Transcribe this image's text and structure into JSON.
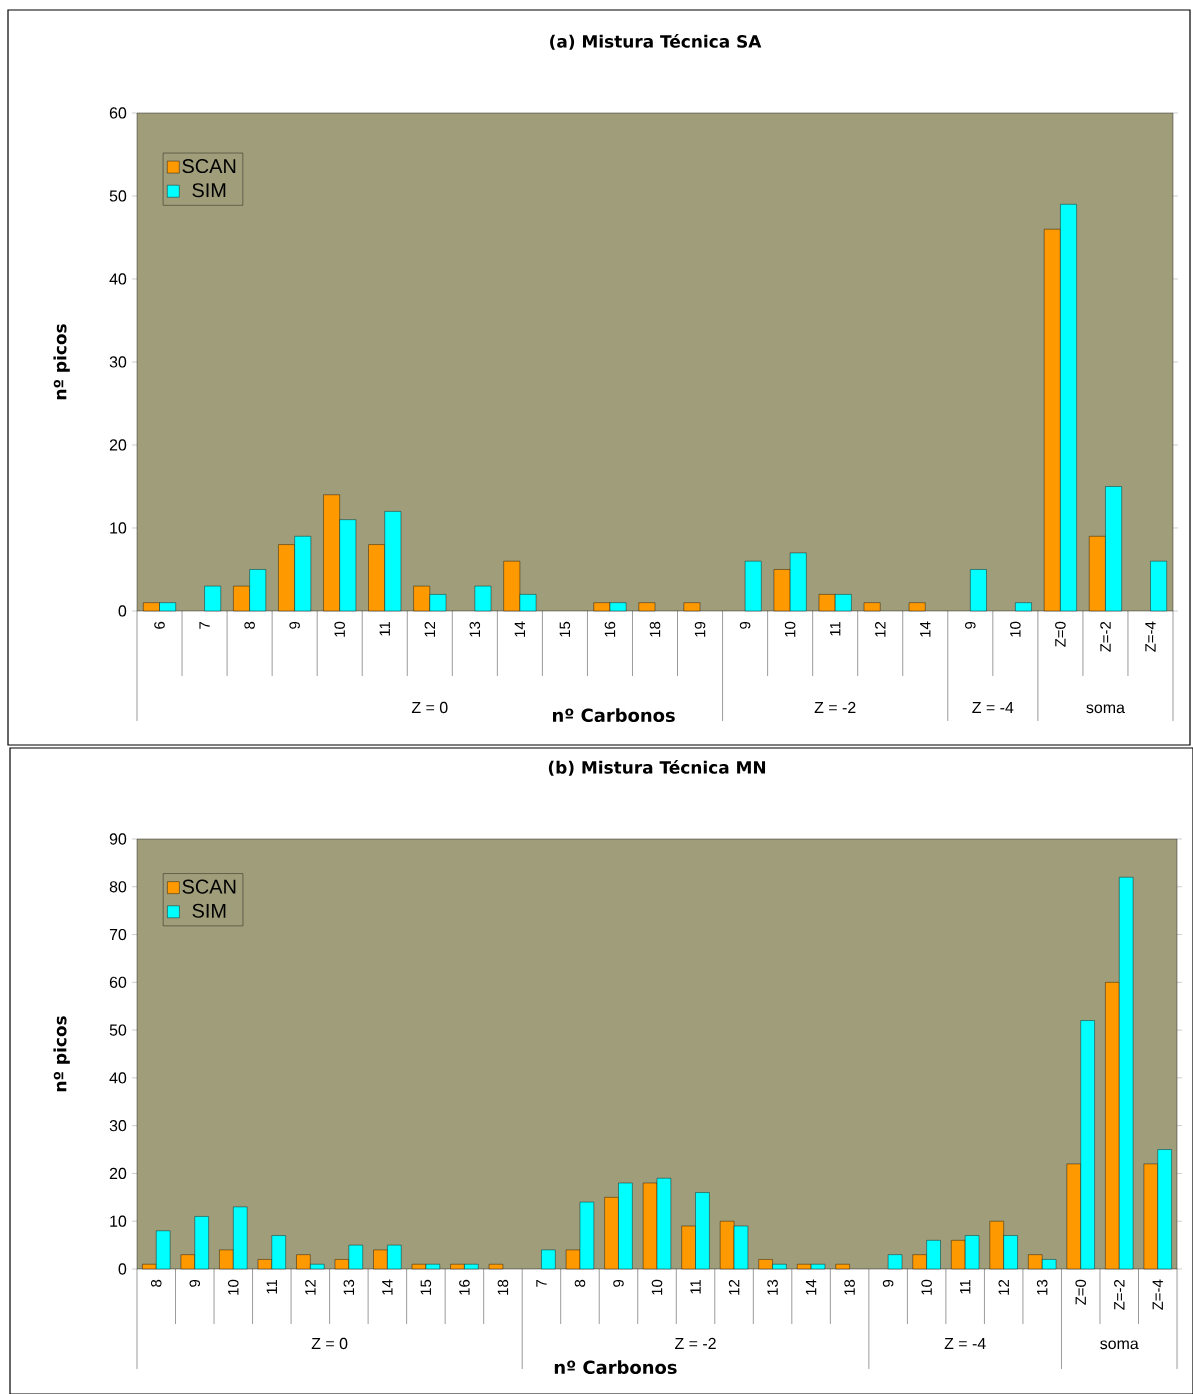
{
  "chart_data": [
    {
      "type": "bar",
      "title": "(a) Mistura Técnica SA",
      "xlabel": "nº Carbonos",
      "ylabel": "nº picos",
      "categories": [
        "6",
        "7",
        "8",
        "9",
        "10",
        "11",
        "12",
        "13",
        "14",
        "15",
        "16",
        "18",
        "19",
        "9",
        "10",
        "11",
        "12",
        "14",
        "9",
        "10",
        "Z=0",
        "Z=-2",
        "Z=-4"
      ],
      "series": [
        {
          "name": "SCAN",
          "color": "#ff9900",
          "values": [
            1,
            null,
            3,
            8,
            14,
            8,
            3,
            null,
            6,
            null,
            1,
            1,
            1,
            null,
            5,
            2,
            1,
            1,
            null,
            null,
            46,
            9,
            null
          ]
        },
        {
          "name": "SIM",
          "color": "#00ffff",
          "values": [
            1,
            3,
            5,
            9,
            11,
            12,
            2,
            3,
            2,
            null,
            1,
            null,
            null,
            6,
            7,
            2,
            null,
            null,
            5,
            1,
            49,
            15,
            6
          ]
        }
      ],
      "ylim": [
        0,
        60
      ],
      "yticks": [
        0,
        10,
        20,
        30,
        40,
        50,
        60
      ],
      "legend": "top left",
      "annotations": [
        "Z = 0",
        "Z = -2",
        "Z = -4",
        "soma"
      ]
    },
    {
      "type": "bar",
      "title": "(b) Mistura Técnica MN",
      "xlabel": "nº Carbonos",
      "ylabel": "nº picos",
      "categories": [
        "8",
        "9",
        "10",
        "11",
        "12",
        "13",
        "14",
        "15",
        "16",
        "18",
        "7",
        "8",
        "9",
        "10",
        "11",
        "12",
        "13",
        "14",
        "18",
        "9",
        "10",
        "11",
        "12",
        "13",
        "Z=0",
        "Z=-2",
        "Z=-4"
      ],
      "series": [
        {
          "name": "SCAN",
          "color": "#ff9900",
          "values": [
            1,
            3,
            4,
            2,
            3,
            2,
            4,
            1,
            1,
            1,
            null,
            4,
            15,
            18,
            9,
            10,
            2,
            1,
            1,
            null,
            3,
            6,
            10,
            3,
            22,
            60,
            22
          ]
        },
        {
          "name": "SIM",
          "color": "#00ffff",
          "values": [
            8,
            11,
            13,
            7,
            1,
            5,
            5,
            1,
            1,
            null,
            4,
            14,
            18,
            19,
            16,
            9,
            1,
            1,
            null,
            3,
            6,
            7,
            7,
            2,
            52,
            82,
            25
          ]
        }
      ],
      "ylim": [
        0,
        90
      ],
      "yticks": [
        0,
        10,
        20,
        30,
        40,
        50,
        60,
        70,
        80,
        90
      ],
      "legend": "top left",
      "annotations": [
        "Z = 0",
        "Z = -2",
        "Z = -4",
        "soma"
      ]
    }
  ]
}
